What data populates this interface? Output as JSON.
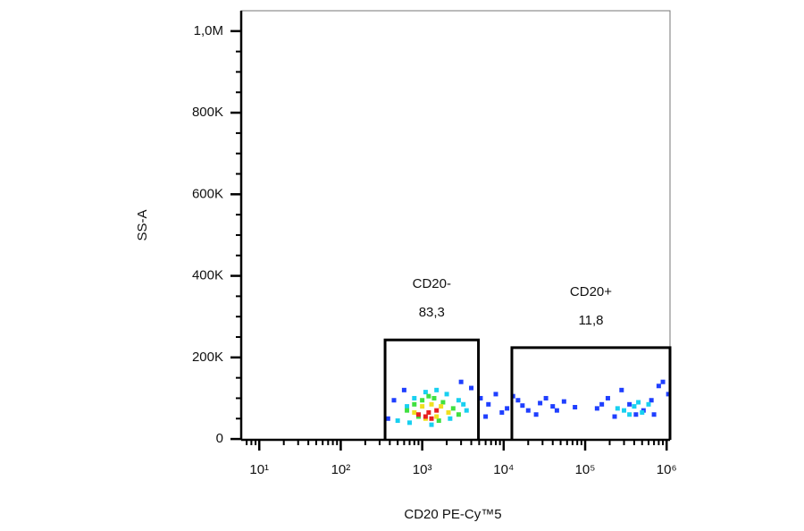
{
  "chart_data": {
    "type": "scatter",
    "xlabel": "CD20 PE-Cy™5",
    "ylabel": "SS-A",
    "xscale": "log",
    "xlim": [
      6,
      1100000
    ],
    "ylim": [
      -2000,
      1050000
    ],
    "xticks": [
      {
        "value": 10,
        "label": "10¹"
      },
      {
        "value": 100,
        "label": "10²"
      },
      {
        "value": 1000,
        "label": "10³"
      },
      {
        "value": 10000,
        "label": "10⁴"
      },
      {
        "value": 100000,
        "label": "10⁵"
      },
      {
        "value": 1000000,
        "label": "10⁶"
      }
    ],
    "xminorticks": [
      7,
      8,
      9,
      20,
      30,
      40,
      50,
      60,
      70,
      80,
      90,
      200,
      300,
      400,
      500,
      600,
      700,
      800,
      900,
      2000,
      3000,
      4000,
      5000,
      6000,
      7000,
      8000,
      9000,
      20000,
      30000,
      40000,
      50000,
      60000,
      70000,
      80000,
      90000,
      200000,
      300000,
      400000,
      500000,
      600000,
      700000,
      800000,
      900000
    ],
    "yticks": [
      0,
      {
        "value": 200000,
        "label": "200K"
      },
      {
        "value": 400000,
        "label": "400K"
      },
      {
        "value": 600000,
        "label": "600K"
      },
      {
        "value": 800000,
        "label": "800K"
      },
      {
        "value": 1000000,
        "label": "1,0M"
      }
    ],
    "yminorticks": [
      50000,
      100000,
      150000,
      250000,
      300000,
      350000,
      450000,
      500000,
      550000,
      650000,
      700000,
      750000,
      850000,
      900000,
      950000
    ],
    "gates": [
      {
        "name": "CD20-",
        "xlim": [
          350,
          4900
        ],
        "ylim": [
          -2000,
          243000
        ],
        "value": 83.3,
        "value_label": "83,3"
      },
      {
        "name": "CD20+",
        "xlim": [
          12600,
          1100000
        ],
        "ylim": [
          -2000,
          224000
        ],
        "value": 11.8,
        "value_label": "11,8"
      }
    ],
    "series": [
      {
        "color": "#1f3fff",
        "x": [
          380,
          450,
          600,
          3000,
          4000,
          5200,
          6500,
          8000,
          11000,
          15000,
          20000,
          28000,
          40000,
          55000,
          75000,
          9500,
          13000,
          25000,
          45000,
          6000,
          17000,
          33000,
          140000,
          190000,
          280000,
          420000,
          650000,
          900000,
          1050000,
          230000,
          350000,
          520000,
          800000,
          160000,
          700000
        ],
        "y": [
          50000,
          95000,
          120000,
          140000,
          125000,
          100000,
          85000,
          110000,
          75000,
          95000,
          70000,
          88000,
          80000,
          92000,
          78000,
          65000,
          105000,
          60000,
          70000,
          55000,
          82000,
          100000,
          75000,
          100000,
          120000,
          60000,
          95000,
          140000,
          110000,
          55000,
          85000,
          70000,
          130000,
          85000,
          60000
        ]
      },
      {
        "color": "#18d0f0",
        "x": [
          500,
          650,
          800,
          1100,
          1500,
          2000,
          2800,
          3500,
          700,
          1300,
          2200,
          3200,
          300000,
          400000,
          500000,
          250000,
          600000,
          350000,
          450000
        ],
        "y": [
          45000,
          80000,
          100000,
          115000,
          120000,
          110000,
          95000,
          70000,
          40000,
          35000,
          50000,
          85000,
          70000,
          80000,
          65000,
          75000,
          85000,
          60000,
          90000
        ]
      },
      {
        "color": "#40e040",
        "x": [
          650,
          800,
          1000,
          1400,
          1800,
          2400,
          900,
          1600,
          2800,
          1200
        ],
        "y": [
          70000,
          85000,
          95000,
          100000,
          90000,
          75000,
          55000,
          45000,
          60000,
          105000
        ]
      },
      {
        "color": "#f0e020",
        "x": [
          800,
          1000,
          1300,
          1700,
          2100,
          1100,
          1500
        ],
        "y": [
          65000,
          80000,
          85000,
          80000,
          65000,
          50000,
          55000
        ]
      },
      {
        "color": "#e82020",
        "x": [
          900,
          1200,
          1500,
          1100,
          1300
        ],
        "y": [
          60000,
          65000,
          70000,
          55000,
          50000
        ]
      }
    ]
  }
}
